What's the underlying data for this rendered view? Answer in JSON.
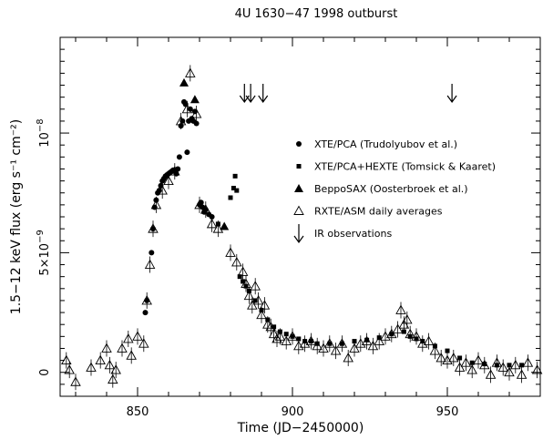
{
  "chart_data": {
    "type": "scatter",
    "title": "4U 1630−47 1998 outburst",
    "xlabel": "Time (JD−2450000)",
    "ylabel": "1.5−12 keV flux (erg s⁻¹ cm⁻²)",
    "xlim": [
      825,
      980
    ],
    "ylim": [
      -1e-09,
      1.4e-08
    ],
    "x_ticks": [
      850,
      900,
      950
    ],
    "x_tick_labels": [
      "850",
      "900",
      "950"
    ],
    "y_ticks": [
      0,
      5e-09,
      1e-08
    ],
    "y_tick_labels": [
      {
        "base": "0",
        "exp": ""
      },
      {
        "base": "5×10",
        "exp": "−9"
      },
      {
        "base": "10",
        "exp": "−8"
      }
    ],
    "grid": false,
    "legend_position": "right-center",
    "series": [
      {
        "name": "XTE/PCA (Trudolyubov et al.)",
        "marker": "circle",
        "points": [
          [
            852.5,
            2.5e-09
          ],
          [
            853,
            3e-09
          ],
          [
            854.5,
            5e-09
          ],
          [
            855,
            6e-09
          ],
          [
            855.5,
            6.9e-09
          ],
          [
            856,
            7.2e-09
          ],
          [
            856.5,
            7.5e-09
          ],
          [
            857,
            7.6e-09
          ],
          [
            857.5,
            7.8e-09
          ],
          [
            858,
            8e-09
          ],
          [
            858.5,
            8.1e-09
          ],
          [
            859,
            8.2e-09
          ],
          [
            859.5,
            8.25e-09
          ],
          [
            860,
            8.3e-09
          ],
          [
            860.5,
            8.35e-09
          ],
          [
            861,
            8.4e-09
          ],
          [
            861.5,
            8.45e-09
          ],
          [
            862,
            8.4e-09
          ],
          [
            862.5,
            8.3e-09
          ],
          [
            863,
            8.5e-09
          ],
          [
            863.5,
            9e-09
          ],
          [
            864,
            1.03e-08
          ],
          [
            864.5,
            1.05e-08
          ],
          [
            865,
            1.13e-08
          ],
          [
            865.5,
            1.12e-08
          ],
          [
            866,
            9.2e-09
          ],
          [
            866.5,
            1.05e-08
          ],
          [
            867,
            1.1e-08
          ],
          [
            867.5,
            1.06e-08
          ],
          [
            868,
            1.05e-08
          ],
          [
            868.5,
            1.09e-08
          ],
          [
            869,
            1.04e-08
          ],
          [
            870,
            7e-09
          ],
          [
            870.5,
            7.1e-09
          ],
          [
            871,
            6.9e-09
          ],
          [
            871.5,
            6.7e-09
          ],
          [
            872,
            6.8e-09
          ],
          [
            873,
            6.6e-09
          ],
          [
            874,
            6.5e-09
          ]
        ]
      },
      {
        "name": "XTE/PCA+HEXTE (Tomsick & Kaaret)",
        "marker": "square",
        "points": [
          [
            876,
            6.2e-09
          ],
          [
            880,
            7.3e-09
          ],
          [
            881,
            7.7e-09
          ],
          [
            881.5,
            8.2e-09
          ],
          [
            882,
            7.6e-09
          ],
          [
            883,
            4e-09
          ],
          [
            884,
            3.8e-09
          ],
          [
            885,
            3.6e-09
          ],
          [
            886,
            3.4e-09
          ],
          [
            888,
            3e-09
          ],
          [
            890,
            2.6e-09
          ],
          [
            892,
            2.2e-09
          ],
          [
            894,
            1.9e-09
          ],
          [
            896,
            1.7e-09
          ],
          [
            898,
            1.6e-09
          ],
          [
            900,
            1.5e-09
          ],
          [
            902,
            1.4e-09
          ],
          [
            904,
            1.3e-09
          ],
          [
            906,
            1.3e-09
          ],
          [
            908,
            1.2e-09
          ],
          [
            912,
            1.2e-09
          ],
          [
            916,
            1.2e-09
          ],
          [
            920,
            1.3e-09
          ],
          [
            924,
            1.35e-09
          ],
          [
            928,
            1.45e-09
          ],
          [
            932,
            1.6e-09
          ],
          [
            936,
            1.7e-09
          ],
          [
            938,
            1.5e-09
          ],
          [
            940,
            1.4e-09
          ],
          [
            942,
            1.3e-09
          ],
          [
            946,
            1.1e-09
          ],
          [
            950,
            9e-10
          ],
          [
            954,
            6e-10
          ],
          [
            958,
            4e-10
          ],
          [
            962,
            3.5e-10
          ],
          [
            966,
            3e-10
          ],
          [
            970,
            3e-10
          ],
          [
            974,
            3e-10
          ]
        ]
      },
      {
        "name": "BeppoSAX (Oosterbroek et al.)",
        "marker": "filled-triangle",
        "points": [
          [
            865,
            1.21e-08
          ],
          [
            868.5,
            1.14e-08
          ],
          [
            878,
            6.1e-09
          ]
        ]
      },
      {
        "name": "RXTE/ASM daily averages",
        "marker": "open-triangle",
        "points": [
          [
            827,
            5e-10
          ],
          [
            828,
            1e-10
          ],
          [
            830,
            -4e-10
          ],
          [
            835,
            2e-10
          ],
          [
            838,
            5e-10
          ],
          [
            840,
            1e-09
          ],
          [
            841,
            3e-10
          ],
          [
            842,
            -3e-10
          ],
          [
            843,
            1e-10
          ],
          [
            845,
            1e-09
          ],
          [
            847,
            1.4e-09
          ],
          [
            848,
            7e-10
          ],
          [
            850,
            1.5e-09
          ],
          [
            852,
            1.2e-09
          ],
          [
            853,
            3e-09
          ],
          [
            854,
            4.5e-09
          ],
          [
            855,
            6e-09
          ],
          [
            856,
            7e-09
          ],
          [
            858,
            7.6e-09
          ],
          [
            860,
            8e-09
          ],
          [
            862,
            8.4e-09
          ],
          [
            864,
            1.05e-08
          ],
          [
            866,
            1.1e-08
          ],
          [
            867,
            1.25e-08
          ],
          [
            869,
            1.08e-08
          ],
          [
            870,
            7e-09
          ],
          [
            872,
            6.8e-09
          ],
          [
            874,
            6.2e-09
          ],
          [
            876,
            6e-09
          ],
          [
            880,
            5e-09
          ],
          [
            882,
            4.6e-09
          ],
          [
            884,
            4.2e-09
          ],
          [
            885,
            3.7e-09
          ],
          [
            886,
            3.2e-09
          ],
          [
            887,
            2.8e-09
          ],
          [
            888,
            3.6e-09
          ],
          [
            889,
            3e-09
          ],
          [
            890,
            2.4e-09
          ],
          [
            891,
            2.8e-09
          ],
          [
            892,
            2e-09
          ],
          [
            893,
            1.9e-09
          ],
          [
            894,
            1.6e-09
          ],
          [
            895,
            1.4e-09
          ],
          [
            896,
            1.5e-09
          ],
          [
            898,
            1.3e-09
          ],
          [
            900,
            1.5e-09
          ],
          [
            902,
            1.1e-09
          ],
          [
            904,
            1.2e-09
          ],
          [
            906,
            1.3e-09
          ],
          [
            908,
            1.1e-09
          ],
          [
            910,
            1e-09
          ],
          [
            912,
            1.2e-09
          ],
          [
            914,
            9e-10
          ],
          [
            916,
            1.2e-09
          ],
          [
            918,
            6e-10
          ],
          [
            920,
            1e-09
          ],
          [
            922,
            1.2e-09
          ],
          [
            924,
            1.3e-09
          ],
          [
            926,
            1.1e-09
          ],
          [
            928,
            1.3e-09
          ],
          [
            930,
            1.5e-09
          ],
          [
            932,
            1.6e-09
          ],
          [
            934,
            1.8e-09
          ],
          [
            935,
            2.6e-09
          ],
          [
            936,
            2e-09
          ],
          [
            937,
            2.2e-09
          ],
          [
            938,
            1.6e-09
          ],
          [
            940,
            1.5e-09
          ],
          [
            942,
            1.2e-09
          ],
          [
            944,
            1.3e-09
          ],
          [
            946,
            9e-10
          ],
          [
            948,
            6e-10
          ],
          [
            950,
            5e-10
          ],
          [
            952,
            6e-10
          ],
          [
            954,
            2e-10
          ],
          [
            956,
            4e-10
          ],
          [
            958,
            1e-10
          ],
          [
            960,
            5e-10
          ],
          [
            962,
            3e-10
          ],
          [
            964,
            -1e-10
          ],
          [
            966,
            4e-10
          ],
          [
            968,
            2e-10
          ],
          [
            970,
            0.0
          ],
          [
            972,
            3e-10
          ],
          [
            974,
            -1e-10
          ],
          [
            976,
            4e-10
          ],
          [
            979,
            1e-10
          ]
        ]
      },
      {
        "name": "IR observations",
        "marker": "down-arrow",
        "x": [
          884.5,
          886.5,
          890.5,
          951.5
        ]
      }
    ]
  }
}
